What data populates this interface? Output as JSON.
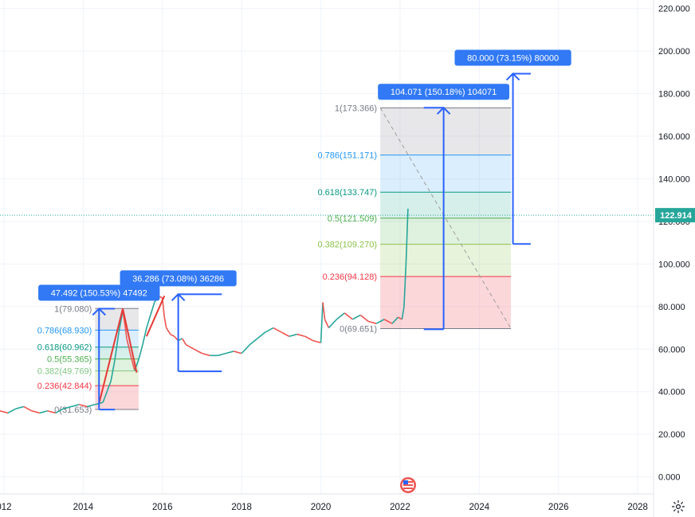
{
  "chart_data": {
    "type": "line",
    "title": "",
    "xlabel": "",
    "ylabel": "",
    "x_ticks": [
      "012",
      "2014",
      "2016",
      "2018",
      "2020",
      "2022",
      "2024",
      "2026",
      "2028"
    ],
    "y_ticks": [
      "0.000",
      "20.000",
      "40.000",
      "60.000",
      "80.000",
      "100.000",
      "120.000",
      "140.000",
      "160.000",
      "180.000",
      "200.000",
      "220.000"
    ],
    "ylim": [
      -8,
      224
    ],
    "xlim": [
      2011.9,
      2028.4
    ],
    "grid": true,
    "current_price": {
      "label": "122.914",
      "value": 122.914,
      "color": "#26a69a"
    },
    "series": [
      {
        "values_key": "price",
        "up_color": "#26a69a",
        "down_color": "#ef5350",
        "x": [
          2011.9,
          2012.1,
          2012.3,
          2012.5,
          2012.7,
          2012.9,
          2013.1,
          2013.3,
          2013.5,
          2013.7,
          2013.9,
          2014.1,
          2014.3,
          2014.5,
          2014.6,
          2014.7,
          2014.8,
          2014.9,
          2015.0,
          2015.05,
          2015.1,
          2015.2,
          2015.3,
          2015.4,
          2015.5,
          2015.6,
          2015.7,
          2015.8,
          2015.9,
          2016.0,
          2016.05,
          2016.1,
          2016.2,
          2016.3,
          2016.4,
          2016.5,
          2016.6,
          2016.8,
          2017.0,
          2017.2,
          2017.4,
          2017.6,
          2017.8,
          2018.0,
          2018.2,
          2018.4,
          2018.6,
          2018.8,
          2019.0,
          2019.2,
          2019.4,
          2019.6,
          2019.8,
          2020.0,
          2020.05,
          2020.1,
          2020.2,
          2020.3,
          2020.4,
          2020.6,
          2020.8,
          2021.0,
          2021.2,
          2021.4,
          2021.6,
          2021.8,
          2021.95,
          2022.05,
          2022.1,
          2022.15,
          2022.2
        ],
        "y": [
          31,
          30,
          32,
          33,
          31,
          30,
          31,
          30,
          32,
          33,
          34,
          33,
          34,
          35,
          40,
          45,
          55,
          68,
          78,
          72,
          65,
          57,
          50,
          55,
          62,
          70,
          76,
          82,
          85,
          84,
          75,
          70,
          67,
          66,
          64,
          65,
          62,
          60,
          58,
          57,
          57,
          58,
          59,
          58,
          62,
          65,
          68,
          70,
          68,
          66,
          67,
          66,
          64,
          63,
          82,
          74,
          70,
          72,
          74,
          77,
          74,
          76,
          73,
          72,
          74,
          72,
          75,
          74,
          80,
          100,
          126
        ]
      }
    ],
    "trend_lines": [
      {
        "x": [
          2014.4,
          2015.0,
          2015.35
        ],
        "y": [
          34.4,
          79.0,
          49.0
        ],
        "color": "#e53935"
      },
      {
        "x": [
          2015.6,
          2016.05
        ],
        "y": [
          66.0,
          85.0
        ],
        "color": "#e53935"
      }
    ],
    "fib_retracements": [
      {
        "x_start": 2014.3,
        "x_end": 2015.4,
        "levels": [
          {
            "label": "1(79.080)",
            "value": 79.08,
            "color": "#787b86"
          },
          {
            "label": "0.786(68.930)",
            "value": 68.93,
            "color": "#2196f3"
          },
          {
            "label": "0.618(60.962)",
            "value": 60.962,
            "color": "#089981"
          },
          {
            "label": "0.5(55.365)",
            "value": 55.365,
            "color": "#4caf50"
          },
          {
            "label": "0.382(49.769)",
            "value": 49.769,
            "color": "#81c784"
          },
          {
            "label": "0.236(42.844)",
            "value": 42.844,
            "color": "#f23645"
          },
          {
            "label": "0(31.653)",
            "value": 31.653,
            "color": "#787b86"
          }
        ]
      },
      {
        "x_start": 2021.5,
        "x_end": 2024.8,
        "levels": [
          {
            "label": "1(173.366)",
            "value": 173.366,
            "color": "#787b86"
          },
          {
            "label": "0.786(151.171)",
            "value": 151.171,
            "color": "#2196f3"
          },
          {
            "label": "0.618(133.747)",
            "value": 133.747,
            "color": "#089981"
          },
          {
            "label": "0.5(121.509)",
            "value": 121.509,
            "color": "#4caf50"
          },
          {
            "label": "0.382(109.270)",
            "value": 109.27,
            "color": "#8bc34a"
          },
          {
            "label": "0.236(94.128)",
            "value": 94.128,
            "color": "#f23645"
          },
          {
            "label": "0(69.651)",
            "value": 69.651,
            "color": "#787b86"
          }
        ]
      }
    ],
    "price_ranges": [
      {
        "label": "47.492 (150.53%) 47492",
        "x": 2014.4,
        "x_end": 2014.8,
        "y_from": 31.6,
        "y_to": 79.0
      },
      {
        "label": "36.286 (73.08%) 36286",
        "x": 2016.4,
        "x_end": 2017.5,
        "y_from": 49.6,
        "y_to": 85.8
      },
      {
        "label": "104.071 (150.18%) 104071",
        "x": 2023.1,
        "x_end": 2022.6,
        "y_from": 69.3,
        "y_to": 173.4
      },
      {
        "label": "80.000 (73.15%) 80000",
        "x": 2024.85,
        "x_end": 2025.3,
        "y_from": 109.4,
        "y_to": 189.4
      }
    ],
    "dashed_line": {
      "x": [
        2021.5,
        2024.8
      ],
      "y": [
        173.366,
        69.651
      ],
      "color": "#9e9e9e"
    },
    "range_color": "#2962ff"
  },
  "icons": {
    "flag": "us-flag-icon",
    "settings": "gear-icon"
  }
}
